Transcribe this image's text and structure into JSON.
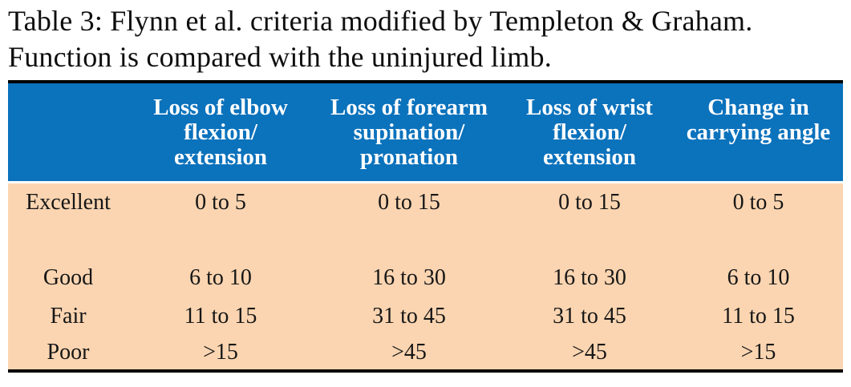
{
  "caption": {
    "line1": "Table 3: Flynn et al. criteria modified by Templeton & Graham.",
    "line2": "Function is compared with the uninjured limb."
  },
  "colors": {
    "header_bg": "#0b72bc",
    "body_bg": "#fbd5b1",
    "border": "#000000",
    "header_text": "#ffffff",
    "body_text": "#161616"
  },
  "table": {
    "header": {
      "col0": "",
      "col1": [
        "Loss of elbow",
        "flexion/",
        "extension"
      ],
      "col2": [
        "Loss of forearm",
        "supination/",
        "pronation"
      ],
      "col3": [
        "Loss of wrist",
        "flexion/",
        "extension"
      ],
      "col4": [
        "Change in",
        "carrying angle"
      ]
    },
    "rows": [
      {
        "label": "Excellent",
        "values": [
          "0 to 5",
          "0 to 15",
          "0 to 15",
          "0 to 5"
        ]
      },
      {
        "label": "Good",
        "values": [
          "6 to 10",
          "16 to 30",
          "16 to 30",
          "6 to 10"
        ]
      },
      {
        "label": "Fair",
        "values": [
          "11 to 15",
          "31 to 45",
          "31 to 45",
          "11 to 15"
        ]
      },
      {
        "label": "Poor",
        "values": [
          ">15",
          ">45",
          ">45",
          ">15"
        ]
      }
    ]
  }
}
